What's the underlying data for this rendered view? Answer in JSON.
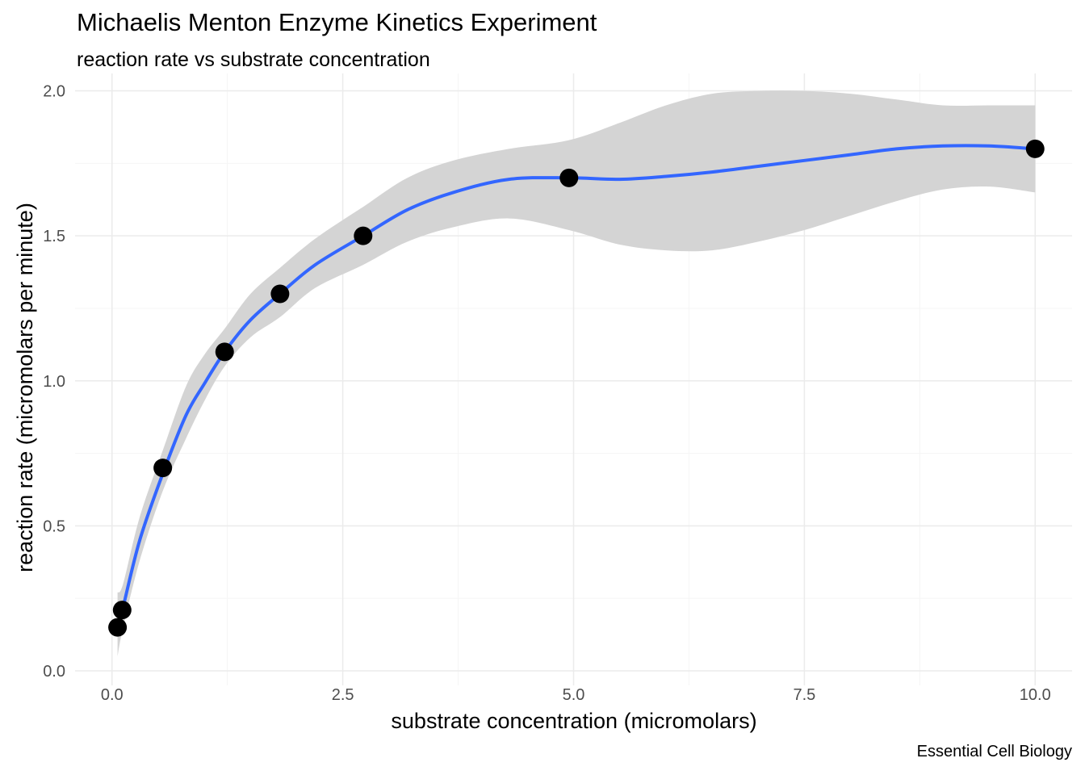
{
  "title": "Michaelis Menton Enzyme Kinetics Experiment",
  "subtitle": "reaction rate vs substrate concentration",
  "caption": "Essential Cell Biology",
  "chart_data": {
    "type": "scatter",
    "title": "Michaelis Menton Enzyme Kinetics Experiment",
    "subtitle": "reaction rate vs substrate concentration",
    "xlabel": "substrate concentration (micromolars)",
    "ylabel": "reaction rate (micromolars per minute)",
    "xlim": [
      -0.4,
      10.4
    ],
    "ylim": [
      -0.05,
      2.06
    ],
    "xticks": [
      0.0,
      2.5,
      5.0,
      7.5,
      10.0
    ],
    "xtick_labels": [
      "0.0",
      "2.5",
      "5.0",
      "7.5",
      "10.0"
    ],
    "yticks": [
      0.0,
      0.5,
      1.0,
      1.5,
      2.0
    ],
    "ytick_labels": [
      "0.0",
      "0.5",
      "1.0",
      "1.5",
      "2.0"
    ],
    "grid": true,
    "points": [
      {
        "x": 0.06,
        "y": 0.15
      },
      {
        "x": 0.11,
        "y": 0.21
      },
      {
        "x": 0.55,
        "y": 0.7
      },
      {
        "x": 1.22,
        "y": 1.1
      },
      {
        "x": 1.82,
        "y": 1.3
      },
      {
        "x": 2.72,
        "y": 1.5
      },
      {
        "x": 4.95,
        "y": 1.7
      },
      {
        "x": 10.0,
        "y": 1.8
      }
    ],
    "smooth": {
      "x": [
        0.06,
        0.12,
        0.3,
        0.55,
        0.8,
        1.0,
        1.22,
        1.5,
        1.82,
        2.2,
        2.72,
        3.2,
        3.7,
        4.3,
        4.95,
        5.5,
        6.0,
        6.5,
        7.0,
        7.5,
        8.0,
        8.5,
        9.0,
        9.5,
        10.0
      ],
      "y": [
        0.15,
        0.22,
        0.45,
        0.68,
        0.88,
        0.99,
        1.1,
        1.21,
        1.3,
        1.4,
        1.5,
        1.59,
        1.65,
        1.695,
        1.7,
        1.695,
        1.705,
        1.72,
        1.74,
        1.76,
        1.78,
        1.8,
        1.81,
        1.81,
        1.8
      ],
      "lower": [
        0.05,
        0.15,
        0.38,
        0.62,
        0.8,
        0.93,
        1.05,
        1.15,
        1.22,
        1.32,
        1.4,
        1.48,
        1.53,
        1.56,
        1.52,
        1.47,
        1.45,
        1.45,
        1.48,
        1.52,
        1.57,
        1.62,
        1.66,
        1.67,
        1.65
      ],
      "upper": [
        0.27,
        0.3,
        0.53,
        0.76,
        0.98,
        1.09,
        1.18,
        1.3,
        1.39,
        1.49,
        1.6,
        1.7,
        1.76,
        1.8,
        1.83,
        1.89,
        1.95,
        1.99,
        2.0,
        2.0,
        1.99,
        1.97,
        1.95,
        1.95,
        1.95
      ]
    },
    "colors": {
      "line": "#3366FF",
      "ribbon": "#d4d4d4",
      "points": "#000000",
      "grid_major": "#ebebeb",
      "grid_minor": "#f5f5f5"
    }
  }
}
